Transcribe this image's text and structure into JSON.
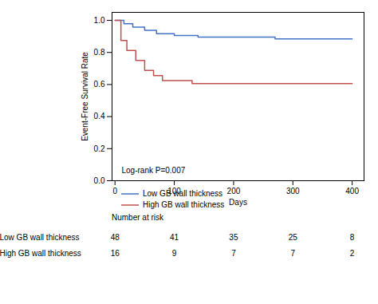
{
  "chart_data": {
    "type": "step",
    "ylabel": "Event-Free Survival Rate",
    "xlabel": "Days",
    "series": [
      {
        "name": "Low GB wall thickness",
        "color": "#4472C4",
        "x": [
          0,
          15,
          15,
          30,
          30,
          50,
          50,
          70,
          70,
          100,
          100,
          140,
          140,
          270,
          270,
          400
        ],
        "values": [
          1.0,
          1.0,
          0.979,
          0.979,
          0.958,
          0.958,
          0.938,
          0.938,
          0.917,
          0.917,
          0.906,
          0.906,
          0.896,
          0.896,
          0.885,
          0.885
        ]
      },
      {
        "name": "High GB wall thickness",
        "color": "#C0504D",
        "x": [
          0,
          10,
          10,
          20,
          20,
          35,
          35,
          50,
          50,
          65,
          65,
          80,
          80,
          130,
          130,
          400
        ],
        "values": [
          1.0,
          1.0,
          0.875,
          0.875,
          0.813,
          0.813,
          0.75,
          0.75,
          0.688,
          0.688,
          0.656,
          0.656,
          0.625,
          0.625,
          0.606,
          0.606
        ]
      }
    ],
    "xlim": [
      -5,
      420
    ],
    "ylim": [
      0.0,
      1.05
    ],
    "xticks": [
      0,
      100,
      200,
      300,
      400
    ],
    "yticks": [
      {
        "value": 0,
        "label": "0.0"
      },
      0.2,
      0.4,
      0.6,
      0.8,
      {
        "value": 1,
        "label": "1.0"
      }
    ],
    "legend": "lower left",
    "annotation": "Log-rank P=0.007",
    "risk_table": {
      "header": "Number at risk",
      "x": [
        0,
        100,
        200,
        300,
        400
      ],
      "rows": [
        {
          "name": "Low GB wall thickness",
          "values": [
            48,
            41,
            35,
            25,
            8
          ]
        },
        {
          "name": "High GB wall thickness",
          "values": [
            16,
            9,
            7,
            7,
            2
          ]
        }
      ]
    }
  }
}
